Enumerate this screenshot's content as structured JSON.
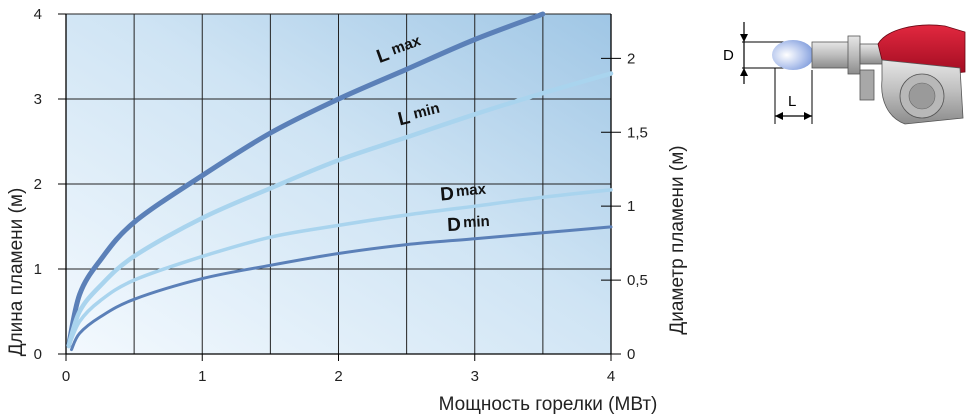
{
  "chart_data": {
    "type": "line",
    "xlabel": "Мощность горелки (МВт)",
    "ylabel": "Длина пламени (м)",
    "y2label": "Диаметр пламени (м)",
    "xlim": [
      0,
      4
    ],
    "ylim": [
      0,
      4
    ],
    "y2lim": [
      0,
      2.3
    ],
    "x_ticks": [
      "0",
      "1",
      "2",
      "3",
      "4"
    ],
    "y_ticks": [
      "0",
      "1",
      "2",
      "3",
      "4"
    ],
    "y2_ticks": [
      "0",
      "0,5",
      "1",
      "1,5",
      "2"
    ],
    "grid": true,
    "series": [
      {
        "name": "L max",
        "label_main": "L",
        "label_sub": "max",
        "axis": "left",
        "color": "#5b80b8",
        "x": [
          0.02,
          0.1,
          0.25,
          0.5,
          1.0,
          1.5,
          2.0,
          2.5,
          3.0,
          3.5
        ],
        "y": [
          0.1,
          0.7,
          1.1,
          1.55,
          2.1,
          2.6,
          3.0,
          3.35,
          3.7,
          4.0
        ]
      },
      {
        "name": "L min",
        "label_main": "L",
        "label_sub": "min",
        "axis": "left",
        "color": "#a9d4ee",
        "x": [
          0.02,
          0.1,
          0.25,
          0.5,
          1.0,
          1.5,
          2.0,
          2.5,
          3.0,
          3.5,
          4.0
        ],
        "y": [
          0.1,
          0.5,
          0.8,
          1.15,
          1.6,
          1.95,
          2.28,
          2.55,
          2.82,
          3.07,
          3.3
        ]
      },
      {
        "name": "D max",
        "label_main": "D",
        "label_sub": "max",
        "axis": "right",
        "color": "#a9d4ee",
        "x": [
          0.02,
          0.1,
          0.25,
          0.5,
          1.0,
          1.5,
          2.0,
          2.5,
          3.0,
          3.5,
          4.0
        ],
        "y": [
          0.05,
          0.22,
          0.36,
          0.5,
          0.66,
          0.79,
          0.87,
          0.94,
          1.0,
          1.06,
          1.11
        ]
      },
      {
        "name": "D min",
        "label_main": "D",
        "label_sub": "min",
        "axis": "right",
        "color": "#5b80b8",
        "x": [
          0.04,
          0.1,
          0.25,
          0.5,
          1.0,
          1.5,
          2.0,
          2.5,
          3.0,
          3.5,
          4.0
        ],
        "y": [
          0.03,
          0.14,
          0.25,
          0.37,
          0.51,
          0.6,
          0.68,
          0.74,
          0.78,
          0.82,
          0.86
        ]
      }
    ]
  },
  "diagram": {
    "d_label": "D",
    "l_label": "L"
  },
  "colors": {
    "plot_bg_left": "#eef6fc",
    "plot_bg_right": "#a9cde8",
    "grid": "#222222",
    "burner_red": "#c8102e",
    "burner_grey": "#b9b9b9",
    "flame_blue": "#8aa6dc"
  }
}
